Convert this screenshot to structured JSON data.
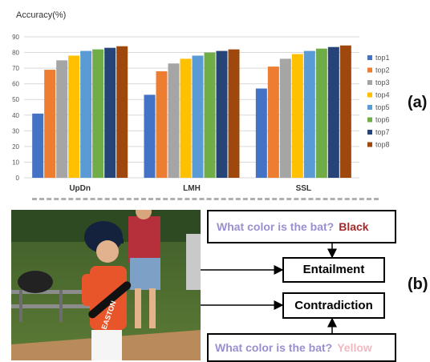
{
  "chart_data": {
    "type": "bar",
    "ylabel": "Accuracy(%)",
    "ylim": [
      0,
      90
    ],
    "yticks": [
      0,
      10,
      20,
      30,
      40,
      50,
      60,
      70,
      80,
      90
    ],
    "grid": true,
    "legend_position": "right",
    "categories": [
      "UpDn",
      "LMH",
      "SSL"
    ],
    "series": [
      {
        "name": "top1",
        "color": "#4472c4",
        "values": [
          41,
          53,
          57
        ]
      },
      {
        "name": "top2",
        "color": "#ed7d31",
        "values": [
          69,
          68,
          71
        ]
      },
      {
        "name": "top3",
        "color": "#a5a5a5",
        "values": [
          75,
          73,
          76
        ]
      },
      {
        "name": "top4",
        "color": "#ffc000",
        "values": [
          78,
          76,
          79
        ]
      },
      {
        "name": "top5",
        "color": "#5b9bd5",
        "values": [
          81,
          78,
          81
        ]
      },
      {
        "name": "top6",
        "color": "#70ad47",
        "values": [
          82,
          80,
          82.5
        ]
      },
      {
        "name": "top7",
        "color": "#264478",
        "values": [
          83,
          81,
          83.5
        ]
      },
      {
        "name": "top8",
        "color": "#9e480e",
        "values": [
          84,
          82,
          84.5
        ]
      }
    ]
  },
  "panels": {
    "a_label": "(a)",
    "b_label": "(b)"
  },
  "example": {
    "question": "What color is the bat?",
    "answer_correct": "Black",
    "answer_wrong": "Yellow",
    "entailment": "Entailment",
    "contradiction": "Contradiction",
    "jersey_text": "EASTON",
    "colors": {
      "question": "#9b8fd0",
      "correct": "#a52a2a",
      "wrong": "#f2b8c0"
    }
  }
}
